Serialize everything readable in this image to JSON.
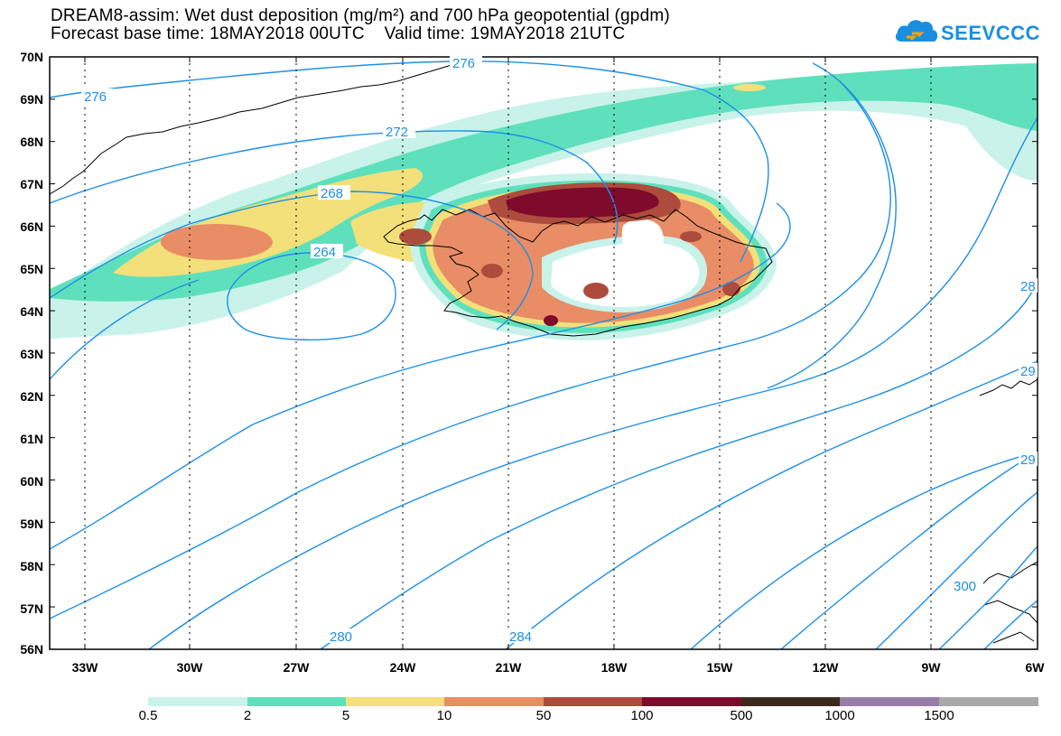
{
  "header": {
    "line1": "DREAM8-assim: Wet dust deposition (mg/m²) and 700 hPa geopotential (gpdm)",
    "line2": "Forecast base time: 18MAY2018 00UTC    Valid time: 19MAY2018 21UTC"
  },
  "logo": {
    "text": "SEEVCCC",
    "icon": "cloud-icon",
    "color": "#1a8fe0"
  },
  "map": {
    "lat_labels": [
      "70N",
      "69N",
      "68N",
      "67N",
      "66N",
      "65N",
      "64N",
      "63N",
      "62N",
      "61N",
      "60N",
      "59N",
      "58N",
      "57N",
      "56N"
    ],
    "lon_labels": [
      "33W",
      "30W",
      "27W",
      "24W",
      "21W",
      "18W",
      "15W",
      "12W",
      "9W",
      "6W"
    ],
    "contour_labels": [
      "276",
      "276",
      "272",
      "268",
      "264",
      "280",
      "284",
      "300",
      "28",
      "29",
      "29"
    ],
    "contour_color": "#1e8fe6",
    "deposition_colors": {
      "lvl_0_5": "#c8f2ea",
      "lvl_2": "#5fe0bd",
      "lvl_5": "#f3e07a",
      "lvl_10": "#e88d66",
      "lvl_50": "#ad4b3c",
      "lvl_100": "#7e0a2c"
    }
  },
  "legend": {
    "labels": [
      "0.5",
      "2",
      "5",
      "10",
      "50",
      "100",
      "500",
      "1000",
      "1500"
    ],
    "colors": [
      "#c8f2ea",
      "#5fe0bd",
      "#f3e07a",
      "#e88d66",
      "#ad4b3c",
      "#7e0a2c",
      "#3d2a1d",
      "#9a7ca8",
      "#a8a8a8"
    ]
  }
}
